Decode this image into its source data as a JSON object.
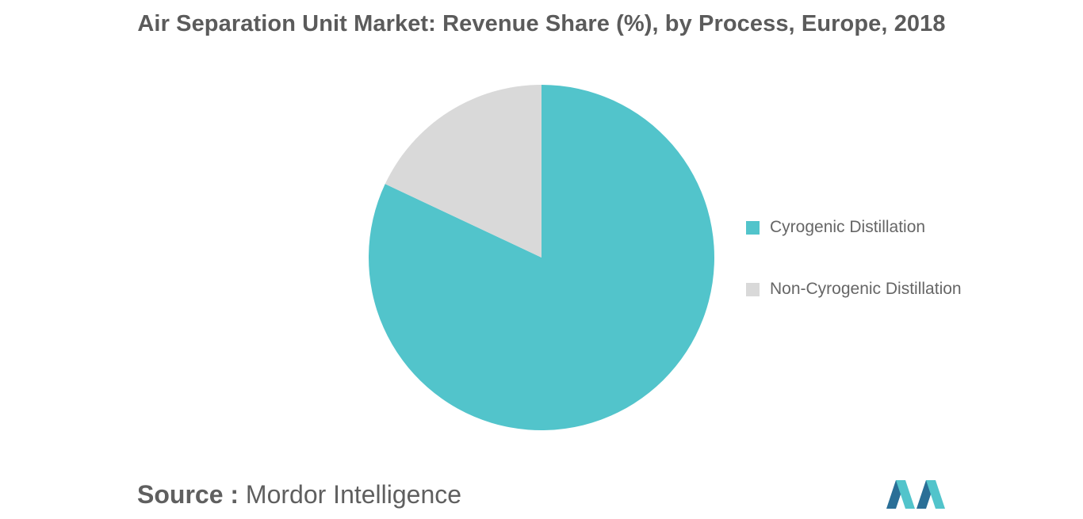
{
  "title": "Air Separation Unit Market: Revenue Share (%), by Process, Europe, 2018",
  "chart_data": {
    "type": "pie",
    "title": "Air Separation Unit Market: Revenue Share (%), by Process, Europe, 2018",
    "start_angle_deg": 0,
    "direction": "clockwise",
    "slices": [
      {
        "label": "Cyrogenic Distillation",
        "value": 82,
        "color": "#52c4cb"
      },
      {
        "label": "Non-Cyrogenic Distillation",
        "value": 18,
        "color": "#d9d9d9"
      }
    ],
    "legend_position": "right"
  },
  "source": {
    "label": "Source :",
    "value": "Mordor Intelligence"
  },
  "logo": {
    "name": "mordor-intelligence-logo",
    "colors": [
      "#2a6f97",
      "#52c4cb"
    ]
  }
}
